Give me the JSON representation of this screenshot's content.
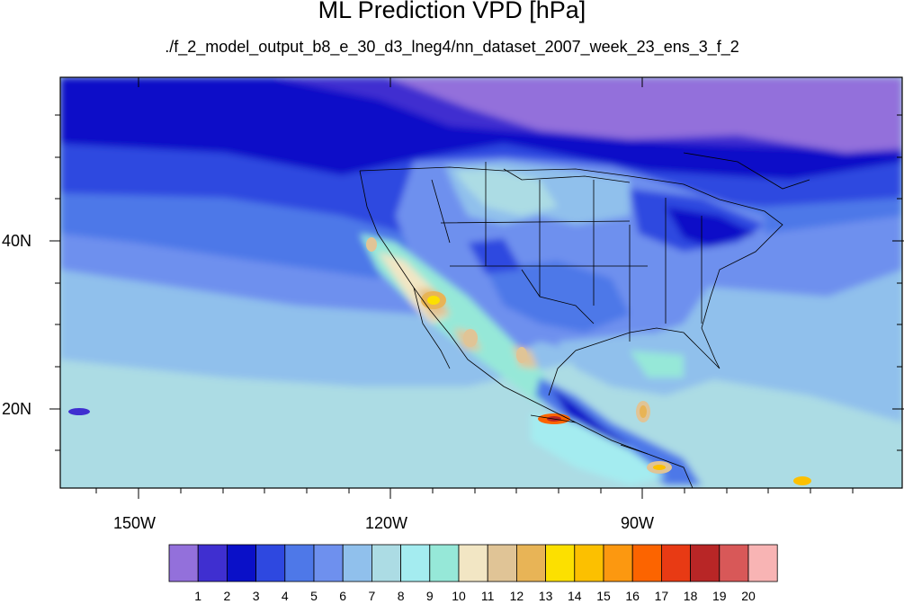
{
  "title": "ML Prediction VPD [hPa]",
  "subtitle": "./f_2_model_output_b8_e_30_d3_lneg4/nn_dataset_2007_week_23_ens_3_f_2",
  "axes": {
    "y_labels": [
      "40N",
      "20N"
    ],
    "x_labels": [
      "150W",
      "120W",
      "90W"
    ]
  },
  "colorbar": {
    "labels": [
      "1",
      "2",
      "3",
      "4",
      "5",
      "6",
      "7",
      "8",
      "9",
      "10",
      "11",
      "12",
      "13",
      "14",
      "15",
      "16",
      "17",
      "18",
      "19",
      "20"
    ],
    "colors": [
      "#9370db",
      "#3f2fd0",
      "#0a10c8",
      "#2e48e0",
      "#4e78e8",
      "#6e90ee",
      "#90c0ec",
      "#acdce4",
      "#a4ecf0",
      "#96e8d8",
      "#f2e6c4",
      "#e0c496",
      "#e8b456",
      "#fce000",
      "#fcc000",
      "#fc9810",
      "#fc6400",
      "#e83a14",
      "#b82626",
      "#d85858",
      "#f8b4b4"
    ]
  },
  "chart_data": {
    "type": "heatmap",
    "title": "ML Prediction VPD [hPa]",
    "subtitle": "./f_2_model_output_b8_e_30_d3_lneg4/nn_dataset_2007_week_23_ens_3_f_2",
    "variable": "VPD",
    "units": "hPa",
    "lon_ticks": [
      "150W",
      "120W",
      "90W"
    ],
    "lat_ticks": [
      "40N",
      "20N"
    ],
    "levels": [
      1,
      2,
      3,
      4,
      5,
      6,
      7,
      8,
      9,
      10,
      11,
      12,
      13,
      14,
      15,
      16,
      17,
      18,
      19,
      20
    ]
  }
}
